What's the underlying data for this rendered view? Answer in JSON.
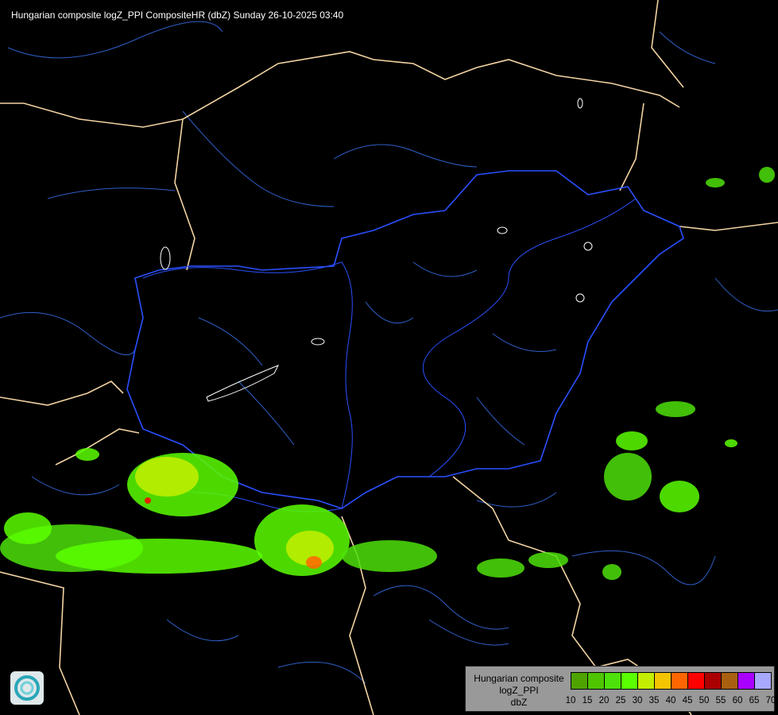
{
  "title": "Hungarian composite logZ_PPI CompositeHR (dbZ) Sunday 26-10-2025 03:40",
  "legend": {
    "lines": [
      "Hungarian composite",
      "logZ_PPI",
      "dbZ"
    ],
    "ticks": [
      "10",
      "15",
      "20",
      "25",
      "30",
      "35",
      "40",
      "45",
      "50",
      "55",
      "60",
      "65",
      "70"
    ],
    "colors": [
      "#4ea300",
      "#4fc400",
      "#4ee00a",
      "#5aff00",
      "#c4ee00",
      "#f4c400",
      "#ff6600",
      "#ff0000",
      "#aa0000",
      "#a86010",
      "#aa00ff",
      "#a8a8ff"
    ]
  },
  "map_colors": {
    "country_border": "#f2d3a2",
    "hungary_border": "#2a50ff",
    "rivers": "#3a6ad8",
    "lakes": "#ffffff"
  },
  "logo": "weather-service-logo"
}
